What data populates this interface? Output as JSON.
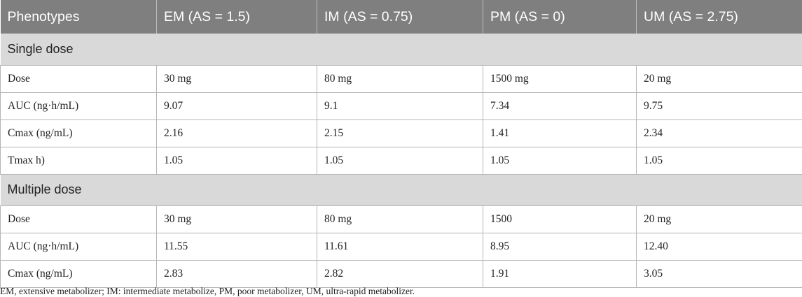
{
  "table": {
    "headers": [
      "Phenotypes",
      "EM (AS = 1.5)",
      "IM (AS = 0.75)",
      "PM (AS = 0)",
      "UM (AS = 2.75)"
    ],
    "sections": [
      {
        "title": "Single dose",
        "rows": [
          [
            "Dose",
            "30 mg",
            "80 mg",
            "1500 mg",
            "20 mg"
          ],
          [
            "AUC (ng·h/mL)",
            "9.07",
            "9.1",
            "7.34",
            "9.75"
          ],
          [
            "Cmax (ng/mL)",
            "2.16",
            "2.15",
            "1.41",
            "2.34"
          ],
          [
            "Tmax h)",
            "1.05",
            "1.05",
            "1.05",
            "1.05"
          ]
        ]
      },
      {
        "title": "Multiple dose",
        "rows": [
          [
            "Dose",
            "30 mg",
            "80 mg",
            "1500",
            "20 mg"
          ],
          [
            "AUC (ng·h/mL)",
            "11.55",
            "11.61",
            "8.95",
            "12.40"
          ],
          [
            "Cmax (ng/mL)",
            "2.83",
            "2.82",
            "1.91",
            "3.05"
          ]
        ]
      }
    ]
  },
  "footnote": "EM, extensive metabolizer; IM: intermediate metabolize, PM, poor metabolizer, UM, ultra-rapid metabolizer.",
  "colors": {
    "header_bg": "#7f7f7f",
    "section_bg": "#d9d9d9",
    "border": "#b5b5b5"
  }
}
